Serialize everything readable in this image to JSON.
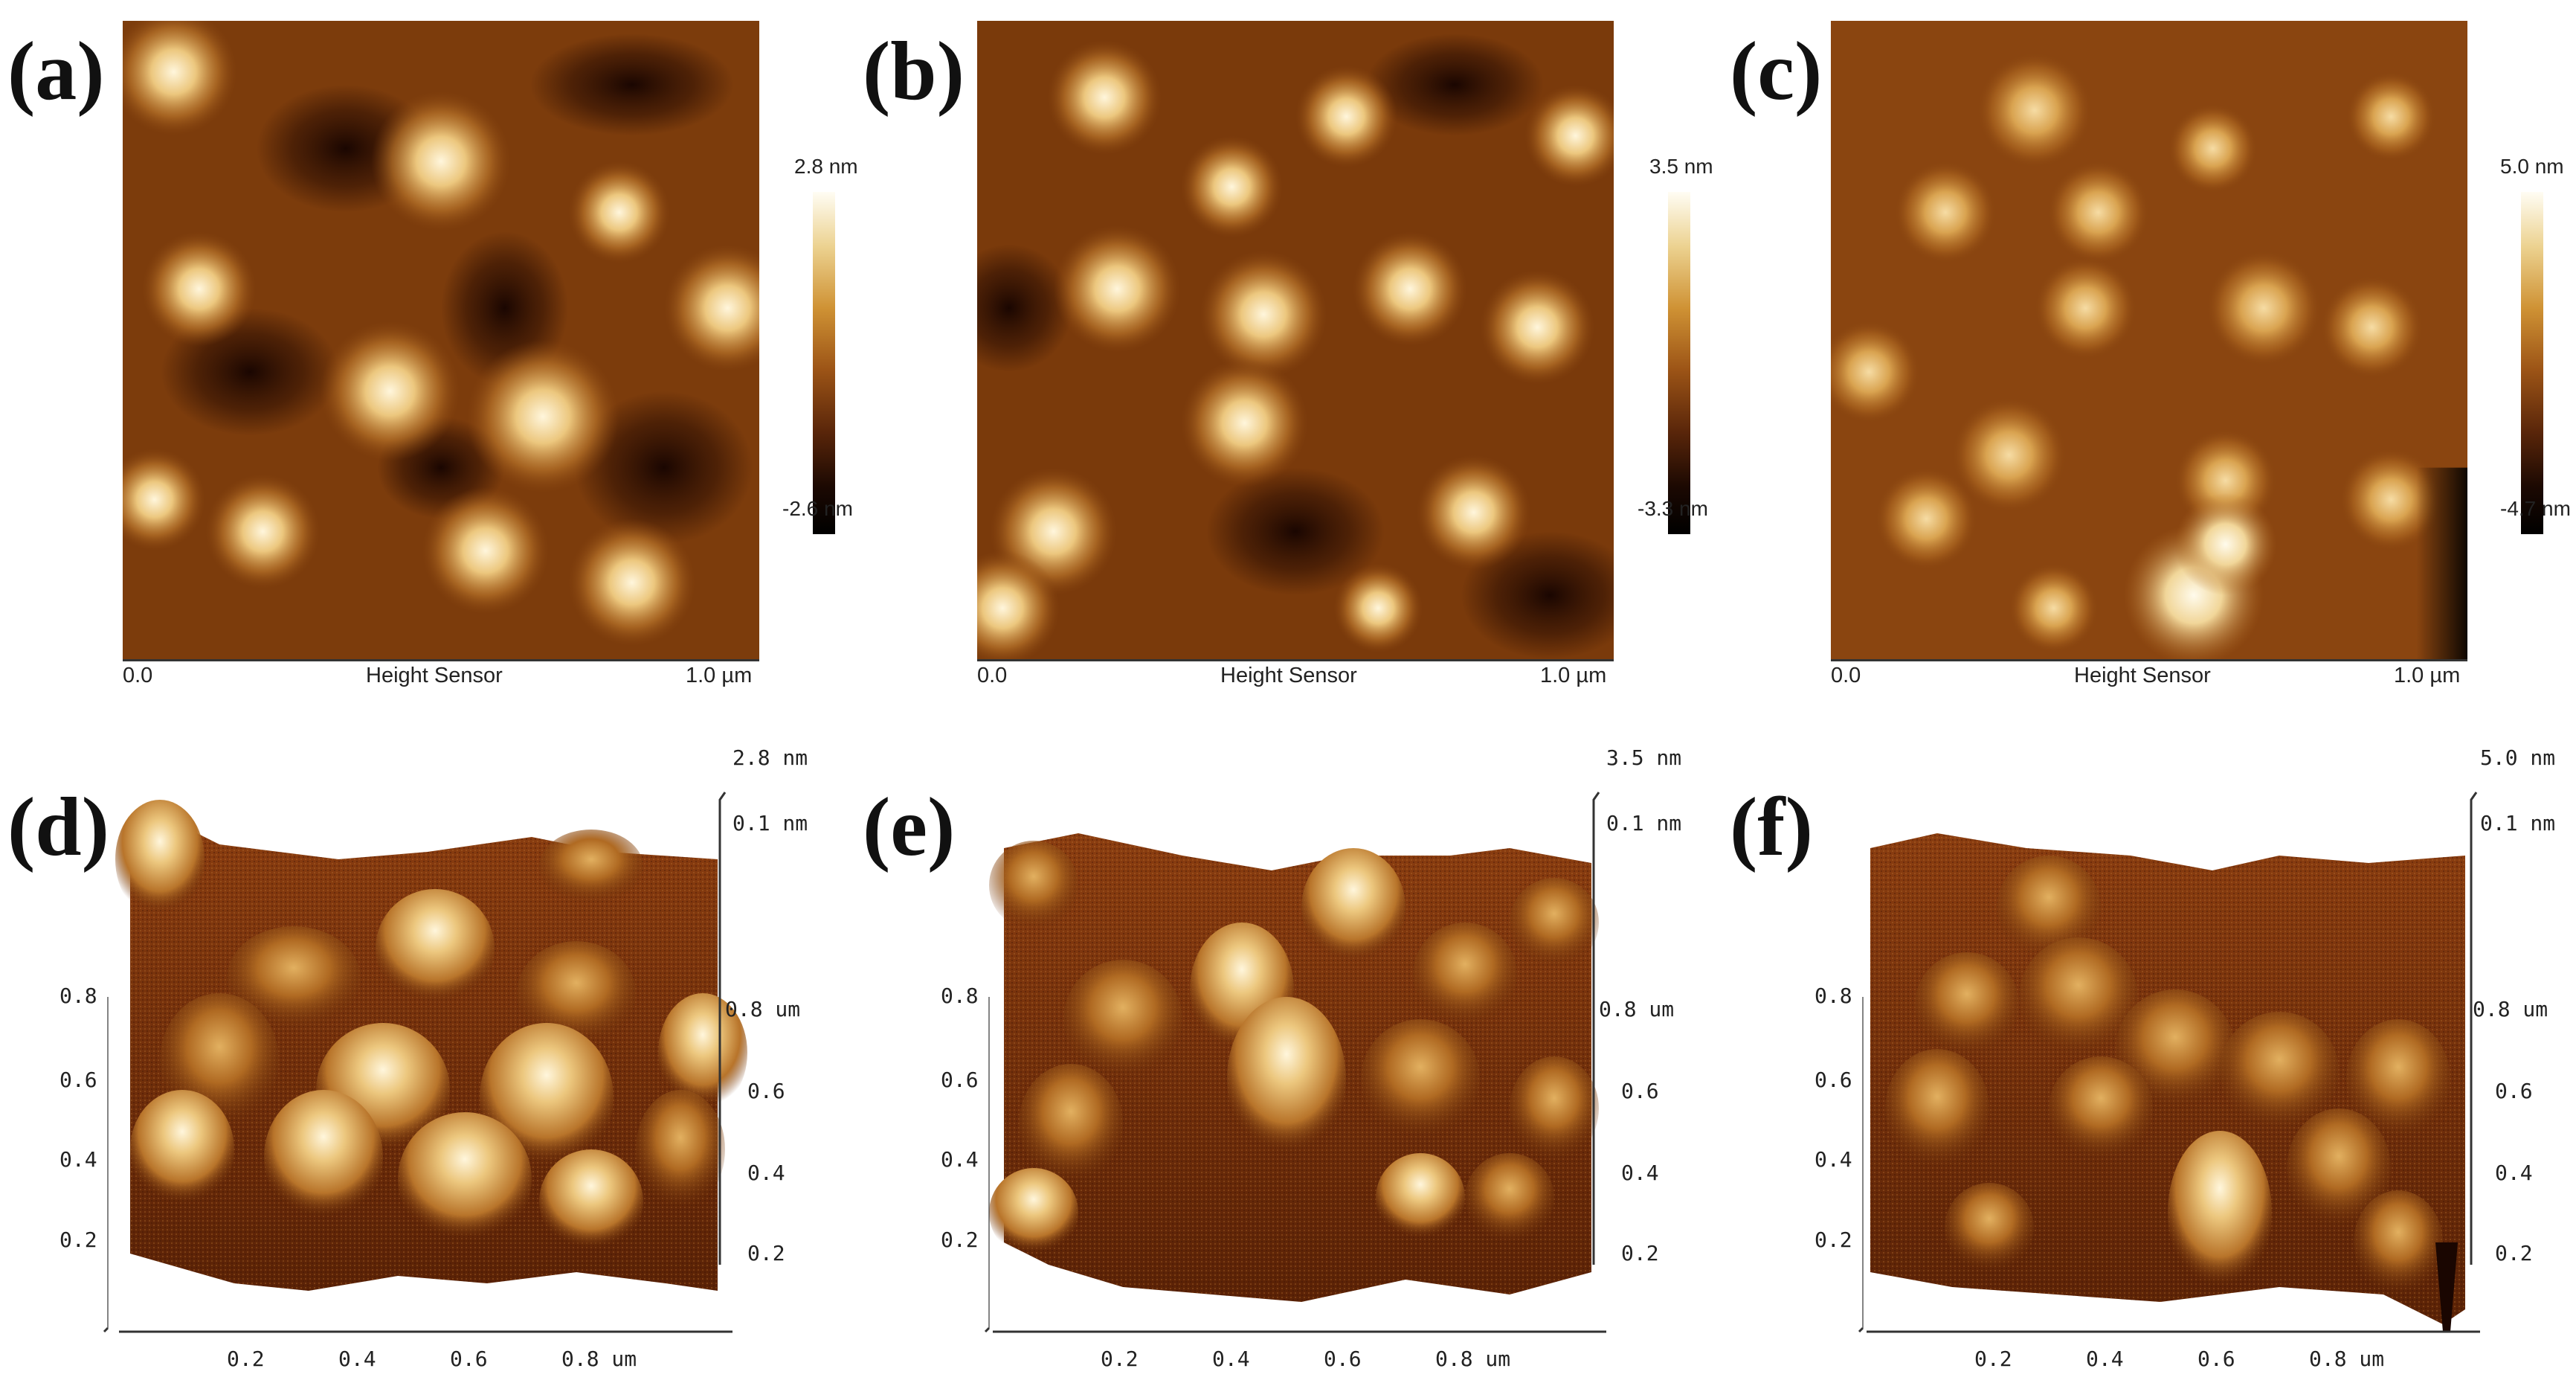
{
  "panels_2d": [
    {
      "label": "(a)",
      "cb_max": "2.8 nm",
      "cb_min": "-2.6 nm",
      "x_start": "0.0",
      "x_title": "Height Sensor",
      "x_end": "1.0 µm"
    },
    {
      "label": "(b)",
      "cb_max": "3.5 nm",
      "cb_min": "-3.3 nm",
      "x_start": "0.0",
      "x_title": "Height Sensor",
      "x_end": "1.0 µm"
    },
    {
      "label": "(c)",
      "cb_max": "5.0 nm",
      "cb_min": "-4.7 nm",
      "x_start": "0.0",
      "x_title": "Height Sensor",
      "x_end": "1.0 µm"
    }
  ],
  "panels_3d": [
    {
      "label": "(d)",
      "z_top": "2.8 nm",
      "z_bottom": "0.1 nm",
      "y_left": [
        "0.8",
        "0.6",
        "0.4",
        "0.2"
      ],
      "y_right": [
        "0.8 um",
        "0.6",
        "0.4",
        "0.2"
      ],
      "x_ticks": [
        "0.2",
        "0.4",
        "0.6",
        "0.8 um"
      ]
    },
    {
      "label": "(e)",
      "z_top": "3.5 nm",
      "z_bottom": "0.1 nm",
      "y_left": [
        "0.8",
        "0.6",
        "0.4",
        "0.2"
      ],
      "y_right": [
        "0.8 um",
        "0.6",
        "0.4",
        "0.2"
      ],
      "x_ticks": [
        "0.2",
        "0.4",
        "0.6",
        "0.8 um"
      ]
    },
    {
      "label": "(f)",
      "z_top": "5.0 nm",
      "z_bottom": "0.1 nm",
      "y_left": [
        "0.8",
        "0.6",
        "0.4",
        "0.2"
      ],
      "y_right": [
        "0.8 um",
        "0.6",
        "0.4",
        "0.2"
      ],
      "x_ticks": [
        "0.2",
        "0.4",
        "0.6",
        "0.8 um"
      ]
    }
  ],
  "colors": {
    "afm_dark": "#3a1604",
    "afm_mid": "#8a4710",
    "afm_light": "#e6c27a",
    "afm_peak": "#fff6dc"
  }
}
